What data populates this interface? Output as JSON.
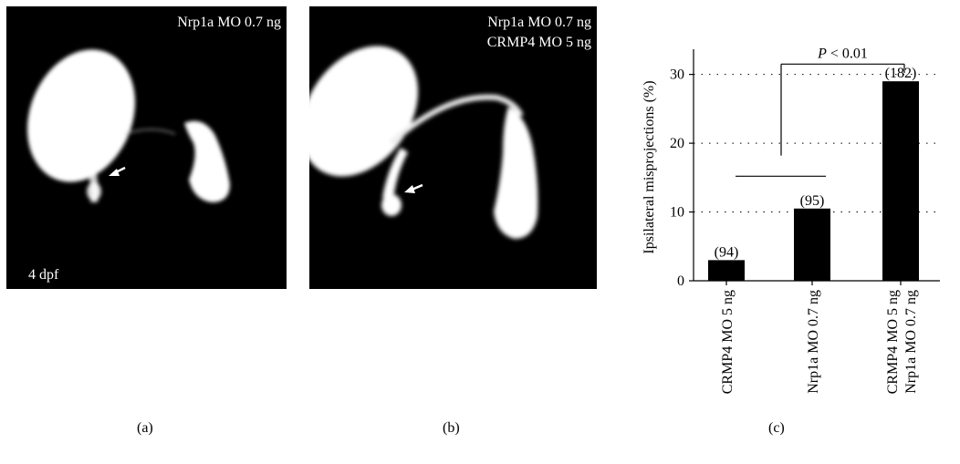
{
  "panels": {
    "a": {
      "label": "(a)",
      "title": "Nrp1a MO 0.7 ng",
      "stage": "4 dpf"
    },
    "b": {
      "label": "(b)",
      "title_line1": "Nrp1a MO 0.7 ng",
      "title_line2": "CRMP4 MO 5 ng"
    },
    "c": {
      "label": "(c)"
    }
  },
  "chart_data": {
    "type": "bar",
    "categories": [
      [
        "CRMP4 MO 5 ng"
      ],
      [
        "Nrp1a MO 0.7 ng"
      ],
      [
        "CRMP4 MO 5 ng",
        "Nrp1a MO 0.7 ng"
      ]
    ],
    "values": [
      3,
      10.5,
      29
    ],
    "counts": [
      "(94)",
      "(95)",
      "(182)"
    ],
    "ylabel": "Ipsilateral misprojections (%)",
    "ylim": [
      0,
      33
    ],
    "yticks": [
      0,
      10,
      20,
      30
    ],
    "grid": "dotted horizontal at 10, 20, 30",
    "bar_color": "#000000",
    "significance": {
      "text": "P < 0.01",
      "between": "first two groups vs third group"
    }
  }
}
